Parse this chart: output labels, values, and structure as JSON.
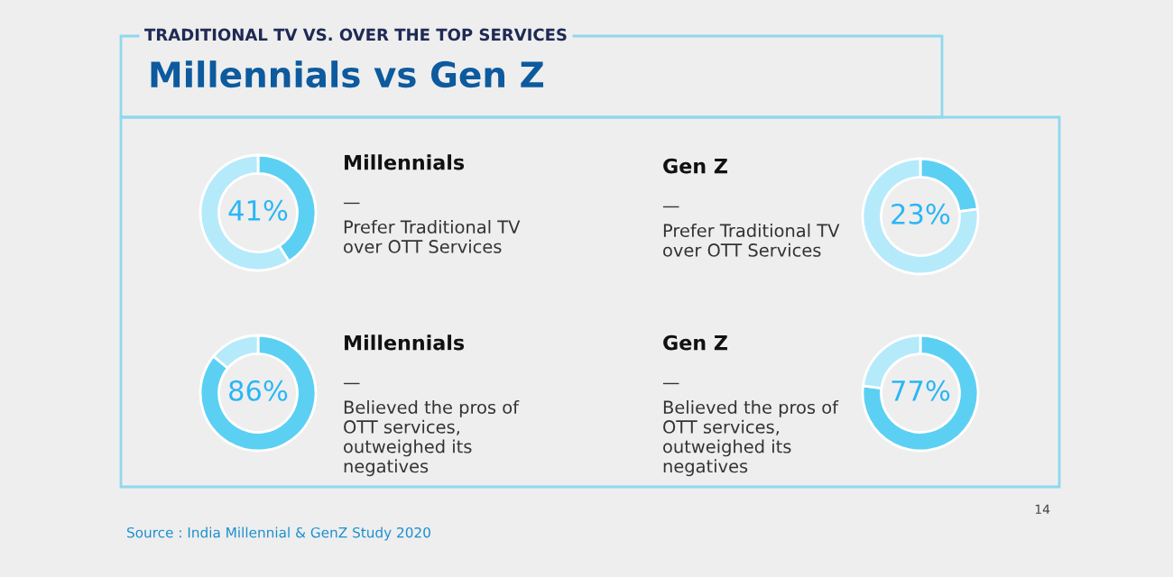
{
  "chart_data": [
    {
      "type": "other",
      "title": "Millennials vs Gen Z",
      "subtitle": "TRADITIONAL TV VS. OVER THE TOP SERVICES",
      "annotations": [
        "Source : India Millennial & GenZ Study 2020",
        "14"
      ]
    },
    {
      "type": "donut",
      "title": "Millennials",
      "annotations": [
        "—",
        "Prefer Traditional TV\nover OTT Services"
      ],
      "categories": [
        null,
        null
      ],
      "values": [
        41,
        59
      ],
      "colors": [
        "#5cd0f3",
        "#b5eafb"
      ],
      "value_labels": [
        "41%",
        null
      ]
    },
    {
      "type": "donut",
      "title": "Gen Z",
      "annotations": [
        "—",
        "Prefer Traditional TV\nover OTT Services"
      ],
      "categories": [
        null,
        null
      ],
      "values": [
        23,
        77
      ],
      "colors": [
        "#5cd0f3",
        "#b5eafb"
      ],
      "value_labels": [
        "23%",
        null
      ]
    },
    {
      "type": "donut",
      "title": "Millennials",
      "annotations": [
        "—",
        "Believed the pros of\nOTT services,\noutweighed its\nnegatives"
      ],
      "categories": [
        null,
        null
      ],
      "values": [
        86,
        14
      ],
      "colors": [
        "#5cd0f3",
        "#b5eafb"
      ],
      "value_labels": [
        "86%",
        null
      ]
    },
    {
      "type": "donut",
      "title": "Gen Z",
      "annotations": [
        "—",
        "Believed the pros of\nOTT services,\noutweighed its\nnegatives"
      ],
      "categories": [
        null,
        null
      ],
      "values": [
        77,
        23
      ],
      "colors": [
        "#5cd0f3",
        "#b5eafb"
      ],
      "value_labels": [
        "77%",
        null
      ]
    }
  ]
}
